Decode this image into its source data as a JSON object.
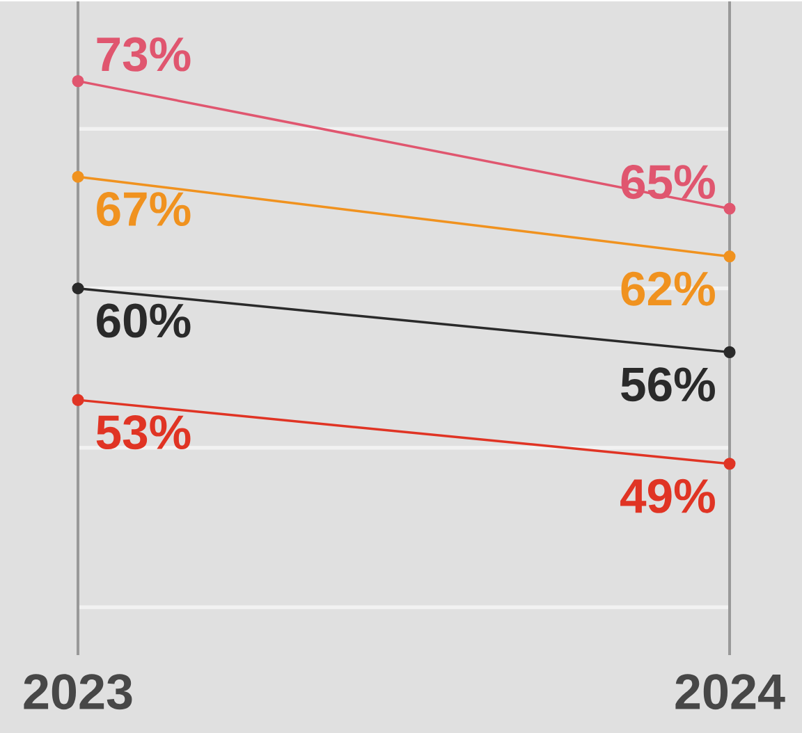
{
  "chart_data": {
    "type": "line",
    "categories": [
      "2023",
      "2024"
    ],
    "series": [
      {
        "color": "#e0566f",
        "values": [
          73,
          65
        ],
        "value_labels": [
          "73%",
          "65%"
        ]
      },
      {
        "color": "#f0921f",
        "values": [
          67,
          62
        ],
        "value_labels": [
          "67%",
          "62%"
        ]
      },
      {
        "color": "#2a2a2a",
        "values": [
          60,
          56
        ],
        "value_labels": [
          "60%",
          "56%"
        ]
      },
      {
        "color": "#e03424",
        "values": [
          53,
          49
        ],
        "value_labels": [
          "53%",
          "49%"
        ]
      }
    ],
    "ylim": [
      37,
      78
    ],
    "yticks": [
      {
        "value": 40,
        "label": null
      },
      {
        "value": 50,
        "label": null
      },
      {
        "value": 60,
        "label": null
      },
      {
        "value": 70,
        "label": null
      }
    ],
    "ref_lines": [
      {
        "axis": "x",
        "value": "2023",
        "color": "#999999"
      },
      {
        "axis": "x",
        "value": "2024",
        "color": "#999999"
      }
    ],
    "grid": "y",
    "marker": "circle",
    "line_style": "solid"
  }
}
